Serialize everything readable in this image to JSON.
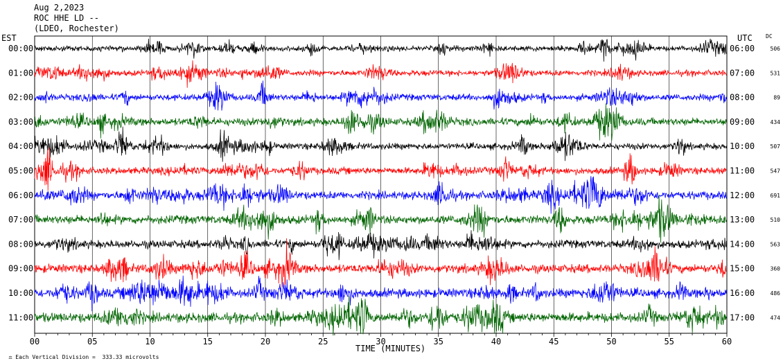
{
  "header": {
    "date": "Aug 2,2023",
    "station": "ROC HHE LD --",
    "location": "(LDEO, Rochester)"
  },
  "left_axis_label": "EST",
  "right_axis_label": "UTC",
  "dc_label": "DC",
  "footer_note": "Each Vertical Division =  333.33 microvolts",
  "chart_data": {
    "type": "line",
    "xlabel": "TIME (MINUTES)",
    "xlim": [
      0,
      60
    ],
    "x_ticks": [
      "00",
      "05",
      "10",
      "15",
      "20",
      "25",
      "30",
      "35",
      "40",
      "45",
      "50",
      "55",
      "60"
    ],
    "traces": [
      {
        "est": "00:00",
        "utc": "06:00",
        "dc": "506",
        "color": "#000000",
        "amplitude": 1.0
      },
      {
        "est": "01:00",
        "utc": "07:00",
        "dc": "531",
        "color": "#ff0000",
        "amplitude": 1.1
      },
      {
        "est": "02:00",
        "utc": "08:00",
        "dc": "89",
        "color": "#0000ff",
        "amplitude": 1.2
      },
      {
        "est": "03:00",
        "utc": "09:00",
        "dc": "434",
        "color": "#006400",
        "amplitude": 1.4
      },
      {
        "est": "04:00",
        "utc": "10:00",
        "dc": "507",
        "color": "#000000",
        "amplitude": 1.2
      },
      {
        "est": "05:00",
        "utc": "11:00",
        "dc": "547",
        "color": "#ff0000",
        "amplitude": 1.3
      },
      {
        "est": "06:00",
        "utc": "12:00",
        "dc": "691",
        "color": "#0000ff",
        "amplitude": 1.5
      },
      {
        "est": "07:00",
        "utc": "13:00",
        "dc": "510",
        "color": "#006400",
        "amplitude": 1.6
      },
      {
        "est": "08:00",
        "utc": "14:00",
        "dc": "563",
        "color": "#000000",
        "amplitude": 1.5
      },
      {
        "est": "09:00",
        "utc": "15:00",
        "dc": "360",
        "color": "#ff0000",
        "amplitude": 1.6
      },
      {
        "est": "10:00",
        "utc": "16:00",
        "dc": "486",
        "color": "#0000ff",
        "amplitude": 1.7
      },
      {
        "est": "11:00",
        "utc": "17:00",
        "dc": "474",
        "color": "#006400",
        "amplitude": 1.8
      }
    ]
  }
}
